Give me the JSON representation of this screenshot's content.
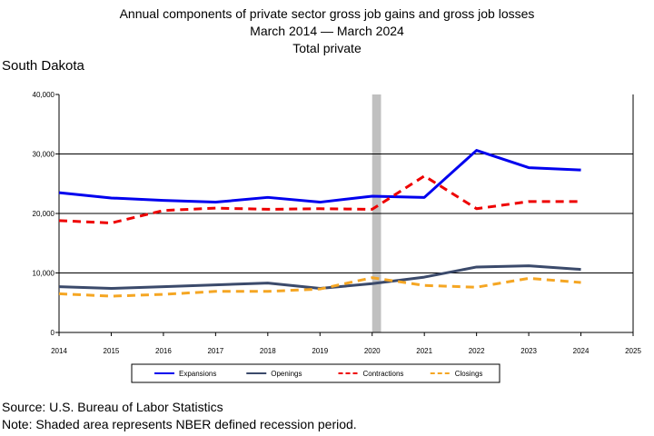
{
  "header": {
    "title_line1": "Annual components of private sector gross job gains and gross job losses",
    "title_line2": "March 2014 — March 2024",
    "title_line3": "Total private",
    "region": "South Dakota"
  },
  "footer": {
    "source": "Source: U.S. Bureau of Labor Statistics",
    "note": "Note: Shaded area represents NBER defined recession period."
  },
  "chart_data": {
    "type": "line",
    "x": [
      2014,
      2015,
      2016,
      2017,
      2018,
      2019,
      2020,
      2021,
      2022,
      2023,
      2024
    ],
    "xlim": [
      2014,
      2025
    ],
    "x_ticks": [
      "2014",
      "2015",
      "2016",
      "2017",
      "2018",
      "2019",
      "2020",
      "2021",
      "2022",
      "2023",
      "2024",
      "2025"
    ],
    "ylim": [
      0,
      40000
    ],
    "y_ticks": [
      "0",
      "10,000",
      "20,000",
      "30,000",
      "40,000"
    ],
    "y_tick_values": [
      0,
      10000,
      20000,
      30000,
      40000
    ],
    "gridlines_y": [
      10000,
      20000,
      30000
    ],
    "recession_shading": [
      2020.0,
      2020.17
    ],
    "legend_position": "bottom",
    "series": [
      {
        "name": "Expansions",
        "color": "#0000ee",
        "dash": "solid",
        "width": 3,
        "values": [
          23500,
          22600,
          22200,
          21900,
          22700,
          21900,
          22900,
          22700,
          30600,
          27700,
          27300
        ]
      },
      {
        "name": "Openings",
        "color": "#3b4a6b",
        "dash": "solid",
        "width": 3,
        "values": [
          7700,
          7400,
          7700,
          8000,
          8300,
          7400,
          8200,
          9300,
          11000,
          11200,
          10600
        ]
      },
      {
        "name": "Contractions",
        "color": "#ee0000",
        "dash": "dashed",
        "width": 3,
        "values": [
          18800,
          18400,
          20500,
          20900,
          20700,
          20800,
          20700,
          26300,
          20800,
          22000,
          22000
        ]
      },
      {
        "name": "Closings",
        "color": "#f5a623",
        "dash": "dashed",
        "width": 3,
        "values": [
          6500,
          6100,
          6400,
          6900,
          6900,
          7300,
          9200,
          7900,
          7600,
          9100,
          8400
        ]
      }
    ]
  }
}
